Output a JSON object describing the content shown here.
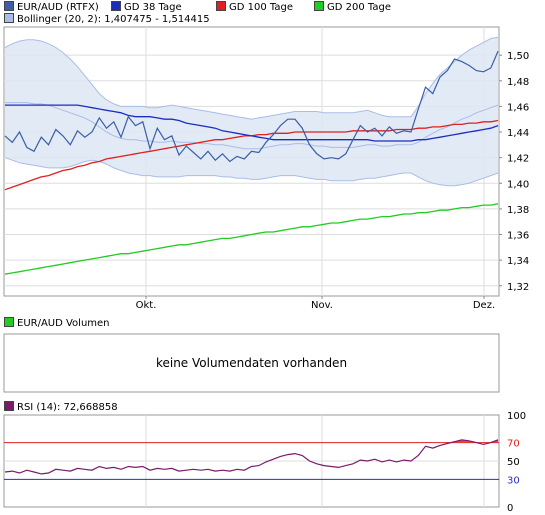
{
  "legends": {
    "main": [
      {
        "label": "EUR/AUD (RTFX)",
        "color": "#3a5fa8"
      },
      {
        "label": "GD 38 Tage",
        "color": "#1a2fbf"
      },
      {
        "label": "GD 100 Tage",
        "color": "#e02020"
      },
      {
        "label": "GD 200 Tage",
        "color": "#22cc22"
      },
      {
        "label": "Bollinger (20, 2): 1,407475 - 1,514415",
        "color": "#a9bde6"
      }
    ],
    "volume": {
      "label": "EUR/AUD Volumen",
      "color": "#22cc22"
    },
    "rsi": {
      "label": "RSI (14): 72,668858",
      "color": "#7a1a6a"
    }
  },
  "volume_panel": {
    "message": "keine Volumendaten vorhanden"
  },
  "chart_data": [
    {
      "type": "line",
      "x_labels": [
        "Okt.",
        "Nov.",
        "Dez."
      ],
      "y_ticks": [
        "1,32",
        "1,34",
        "1,36",
        "1,38",
        "1,40",
        "1,42",
        "1,44",
        "1,46",
        "1,48",
        "1,50"
      ],
      "ylim": [
        1.312,
        1.522
      ],
      "grid": true,
      "series": [
        {
          "name": "EUR/AUD (RTFX)",
          "color": "#3a5fa8",
          "values": [
            1.437,
            1.432,
            1.44,
            1.428,
            1.425,
            1.436,
            1.43,
            1.442,
            1.437,
            1.43,
            1.441,
            1.436,
            1.44,
            1.451,
            1.443,
            1.448,
            1.436,
            1.452,
            1.445,
            1.448,
            1.427,
            1.443,
            1.434,
            1.437,
            1.422,
            1.429,
            1.424,
            1.419,
            1.425,
            1.418,
            1.423,
            1.417,
            1.421,
            1.419,
            1.425,
            1.424,
            1.432,
            1.438,
            1.445,
            1.45,
            1.45,
            1.443,
            1.43,
            1.423,
            1.419,
            1.42,
            1.419,
            1.423,
            1.434,
            1.445,
            1.44,
            1.443,
            1.437,
            1.444,
            1.439,
            1.441,
            1.44,
            1.458,
            1.475,
            1.47,
            1.483,
            1.488,
            1.497,
            1.495,
            1.492,
            1.488,
            1.487,
            1.49,
            1.503
          ]
        },
        {
          "name": "GD 38 Tage",
          "color": "#1a2fbf",
          "values": [
            1.461,
            1.461,
            1.461,
            1.461,
            1.461,
            1.461,
            1.461,
            1.461,
            1.461,
            1.461,
            1.461,
            1.46,
            1.459,
            1.458,
            1.457,
            1.456,
            1.455,
            1.453,
            1.452,
            1.452,
            1.452,
            1.451,
            1.45,
            1.45,
            1.449,
            1.447,
            1.446,
            1.445,
            1.444,
            1.443,
            1.441,
            1.44,
            1.439,
            1.438,
            1.437,
            1.436,
            1.435,
            1.434,
            1.434,
            1.434,
            1.434,
            1.434,
            1.434,
            1.434,
            1.434,
            1.434,
            1.434,
            1.434,
            1.434,
            1.434,
            1.434,
            1.433,
            1.433,
            1.433,
            1.433,
            1.433,
            1.433,
            1.434,
            1.434,
            1.435,
            1.436,
            1.437,
            1.438,
            1.439,
            1.44,
            1.441,
            1.442,
            1.443,
            1.445
          ]
        },
        {
          "name": "GD 100 Tage",
          "color": "#e02020",
          "values": [
            1.395,
            1.397,
            1.399,
            1.401,
            1.403,
            1.405,
            1.406,
            1.408,
            1.41,
            1.411,
            1.413,
            1.414,
            1.416,
            1.417,
            1.419,
            1.42,
            1.421,
            1.422,
            1.423,
            1.424,
            1.425,
            1.426,
            1.427,
            1.428,
            1.429,
            1.43,
            1.431,
            1.432,
            1.433,
            1.434,
            1.434,
            1.435,
            1.436,
            1.437,
            1.437,
            1.438,
            1.438,
            1.439,
            1.439,
            1.439,
            1.44,
            1.44,
            1.44,
            1.44,
            1.44,
            1.44,
            1.44,
            1.44,
            1.441,
            1.441,
            1.441,
            1.441,
            1.441,
            1.441,
            1.442,
            1.442,
            1.442,
            1.443,
            1.443,
            1.444,
            1.444,
            1.445,
            1.446,
            1.446,
            1.447,
            1.447,
            1.448,
            1.448,
            1.449
          ]
        },
        {
          "name": "GD 200 Tage",
          "color": "#22cc22",
          "values": [
            1.329,
            1.33,
            1.331,
            1.332,
            1.333,
            1.334,
            1.335,
            1.336,
            1.337,
            1.338,
            1.339,
            1.34,
            1.341,
            1.342,
            1.343,
            1.344,
            1.345,
            1.345,
            1.346,
            1.347,
            1.348,
            1.349,
            1.35,
            1.351,
            1.352,
            1.352,
            1.353,
            1.354,
            1.355,
            1.356,
            1.357,
            1.357,
            1.358,
            1.359,
            1.36,
            1.361,
            1.362,
            1.362,
            1.363,
            1.364,
            1.365,
            1.366,
            1.366,
            1.367,
            1.368,
            1.369,
            1.369,
            1.37,
            1.371,
            1.372,
            1.372,
            1.373,
            1.374,
            1.374,
            1.375,
            1.376,
            1.376,
            1.377,
            1.377,
            1.378,
            1.379,
            1.379,
            1.38,
            1.381,
            1.381,
            1.382,
            1.383,
            1.383,
            1.384
          ]
        }
      ],
      "bands": [
        {
          "name": "Bollinger (20, 2)",
          "color": "#a9bde6",
          "upper": [
            1.506,
            1.509,
            1.511,
            1.512,
            1.512,
            1.511,
            1.509,
            1.506,
            1.502,
            1.497,
            1.491,
            1.484,
            1.477,
            1.47,
            1.465,
            1.462,
            1.46,
            1.46,
            1.46,
            1.46,
            1.459,
            1.459,
            1.46,
            1.461,
            1.46,
            1.459,
            1.458,
            1.457,
            1.456,
            1.455,
            1.454,
            1.453,
            1.452,
            1.451,
            1.45,
            1.451,
            1.452,
            1.453,
            1.454,
            1.455,
            1.456,
            1.456,
            1.456,
            1.456,
            1.455,
            1.455,
            1.455,
            1.455,
            1.455,
            1.456,
            1.457,
            1.455,
            1.453,
            1.452,
            1.452,
            1.452,
            1.452,
            1.46,
            1.47,
            1.478,
            1.485,
            1.49,
            1.495,
            1.5,
            1.504,
            1.507,
            1.51,
            1.513,
            1.514
          ],
          "lower": [
            1.42,
            1.418,
            1.416,
            1.415,
            1.414,
            1.413,
            1.412,
            1.412,
            1.412,
            1.413,
            1.415,
            1.417,
            1.418,
            1.417,
            1.415,
            1.412,
            1.41,
            1.408,
            1.407,
            1.406,
            1.406,
            1.405,
            1.405,
            1.405,
            1.405,
            1.406,
            1.406,
            1.406,
            1.406,
            1.406,
            1.405,
            1.405,
            1.404,
            1.404,
            1.403,
            1.403,
            1.404,
            1.405,
            1.406,
            1.406,
            1.406,
            1.405,
            1.404,
            1.403,
            1.403,
            1.402,
            1.402,
            1.402,
            1.402,
            1.403,
            1.404,
            1.404,
            1.405,
            1.406,
            1.407,
            1.408,
            1.408,
            1.405,
            1.402,
            1.4,
            1.399,
            1.398,
            1.398,
            1.399,
            1.4,
            1.402,
            1.404,
            1.406,
            1.408
          ]
        },
        {
          "name": "Bollinger mid",
          "color": "#a9bde6",
          "values": [
            1.463,
            1.463,
            1.463,
            1.463,
            1.462,
            1.462,
            1.461,
            1.459,
            1.457,
            1.455,
            1.453,
            1.451,
            1.448,
            1.444,
            1.44,
            1.437,
            1.435,
            1.434,
            1.434,
            1.433,
            1.433,
            1.432,
            1.432,
            1.433,
            1.432,
            1.432,
            1.432,
            1.431,
            1.431,
            1.43,
            1.43,
            1.429,
            1.428,
            1.427,
            1.427,
            1.427,
            1.428,
            1.429,
            1.43,
            1.43,
            1.431,
            1.431,
            1.43,
            1.429,
            1.429,
            1.428,
            1.428,
            1.428,
            1.428,
            1.429,
            1.43,
            1.43,
            1.429,
            1.429,
            1.43,
            1.43,
            1.43,
            1.432,
            1.436,
            1.439,
            1.442,
            1.444,
            1.447,
            1.45,
            1.452,
            1.455,
            1.457,
            1.459,
            1.461
          ]
        }
      ]
    },
    {
      "type": "line",
      "x_labels": [
        "Okt.",
        "Nov.",
        "Dez."
      ],
      "y_ticks": [
        "0",
        "30",
        "50",
        "70",
        "100"
      ],
      "ylim": [
        0,
        100
      ],
      "reference_lines": [
        70,
        30
      ],
      "grid": true,
      "series": [
        {
          "name": "RSI (14)",
          "color": "#7a1a6a",
          "values": [
            38,
            39,
            37,
            40,
            38,
            36,
            37,
            41,
            40,
            39,
            42,
            41,
            40,
            44,
            42,
            43,
            41,
            44,
            43,
            44,
            40,
            42,
            41,
            42,
            39,
            40,
            41,
            40,
            41,
            39,
            40,
            39,
            41,
            40,
            44,
            45,
            49,
            52,
            55,
            57,
            58,
            56,
            50,
            47,
            45,
            44,
            43,
            45,
            47,
            51,
            50,
            52,
            49,
            51,
            49,
            51,
            50,
            56,
            66,
            64,
            67,
            69,
            71,
            73,
            72,
            70,
            68,
            70,
            73
          ]
        }
      ]
    }
  ]
}
